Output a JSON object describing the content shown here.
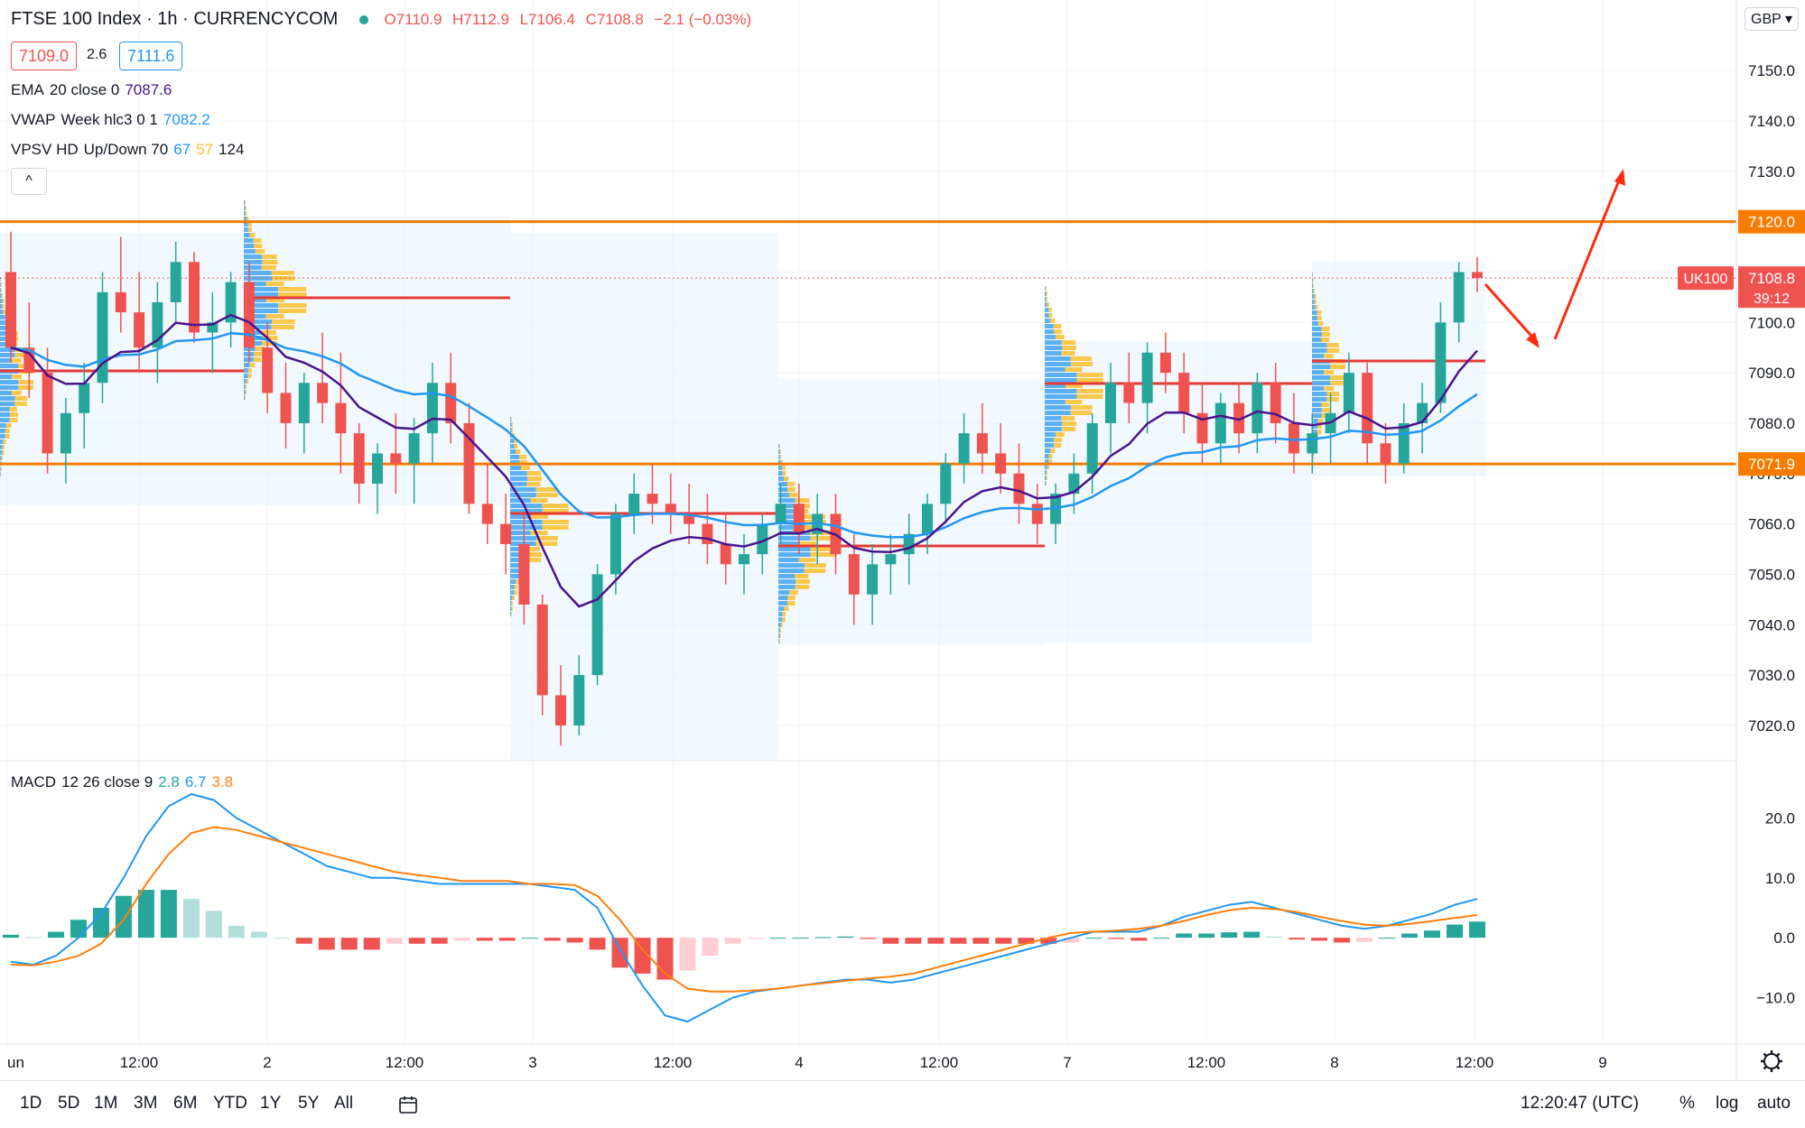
{
  "header": {
    "symbol_title": "FTSE 100 Index · 1h · CURRENCYCOM",
    "ohlc": {
      "open": "O7110.9",
      "high": "H7112.9",
      "low": "L7106.4",
      "close": "C7108.8",
      "change": "−2.1 (−0.03%)"
    },
    "bid": "7109.0",
    "spread": "2.6",
    "ask": "7111.6",
    "currency": "GBP",
    "collapse_symbol": "^"
  },
  "indicators": {
    "ema": {
      "name": "EMA",
      "params": "20 close 0",
      "value": "7087.6",
      "color": "#4a148c"
    },
    "vwap": {
      "name": "VWAP",
      "params": "Week hlc3 0 1",
      "value": "7082.2",
      "color": "#2196f3"
    },
    "vpsv": {
      "name": "VPSV HD",
      "params": "Up/Down 70",
      "v1": "67",
      "v2": "57",
      "v3": "124"
    },
    "macd": {
      "name": "MACD",
      "params": "12 26 close 9",
      "v1": "2.8",
      "v2": "6.7",
      "v3": "3.8"
    }
  },
  "price_axis": {
    "ticks": [
      "7150.0",
      "7140.0",
      "7130.0",
      "7120.0",
      "7110.0",
      "7100.0",
      "7090.0",
      "7080.0",
      "7070.0",
      "7060.0",
      "7050.0",
      "7040.0",
      "7030.0",
      "7020.0"
    ],
    "tag_resistance": "7120.0",
    "tag_support": "7071.9",
    "tag_symbol": "UK100",
    "tag_price": "7108.8",
    "tag_countdown": "39:12"
  },
  "macd_axis": {
    "ticks": [
      "20.0",
      "10.0",
      "0.0",
      "−10.0"
    ]
  },
  "time_axis": {
    "labels": [
      "un",
      "12:00",
      "2",
      "12:00",
      "3",
      "12:00",
      "4",
      "12:00",
      "7",
      "12:00",
      "8",
      "12:00",
      "9"
    ]
  },
  "bottom_bar": {
    "timeframes": [
      "1D",
      "5D",
      "1M",
      "3M",
      "6M",
      "YTD",
      "1Y",
      "5Y",
      "All"
    ],
    "clock": "12:20:47 (UTC)",
    "percent": "%",
    "log": "log",
    "auto": "auto"
  },
  "colors": {
    "up": "#26a69a",
    "down": "#ef5350",
    "resistance": "#f57c00",
    "poc": "#e53935",
    "arrow": "#ff2a10",
    "macd_line": "#2196f3",
    "signal_line": "#ff7f0e"
  },
  "chart_data": {
    "type": "candlestick",
    "interval": "1h",
    "y_range": [
      7013,
      7164
    ],
    "key_levels": {
      "resistance": 7120.0,
      "support": 7071.9,
      "last_price": 7108.8
    },
    "candles": [
      [
        7110,
        7118,
        7092,
        7095
      ],
      [
        7095,
        7104,
        7085,
        7090
      ],
      [
        7090,
        7095,
        7070,
        7074
      ],
      [
        7074,
        7085,
        7068,
        7082
      ],
      [
        7082,
        7092,
        7075,
        7088
      ],
      [
        7088,
        7110,
        7084,
        7106
      ],
      [
        7106,
        7117,
        7098,
        7102
      ],
      [
        7102,
        7110,
        7090,
        7095
      ],
      [
        7095,
        7108,
        7088,
        7104
      ],
      [
        7104,
        7116,
        7100,
        7112
      ],
      [
        7112,
        7114,
        7096,
        7098
      ],
      [
        7098,
        7106,
        7090,
        7100
      ],
      [
        7100,
        7110,
        7095,
        7108
      ],
      [
        7108,
        7112,
        7092,
        7095
      ],
      [
        7095,
        7100,
        7082,
        7086
      ],
      [
        7086,
        7092,
        7075,
        7080
      ],
      [
        7080,
        7090,
        7074,
        7088
      ],
      [
        7088,
        7098,
        7080,
        7084
      ],
      [
        7084,
        7094,
        7070,
        7078
      ],
      [
        7078,
        7080,
        7064,
        7068
      ],
      [
        7068,
        7076,
        7062,
        7074
      ],
      [
        7074,
        7082,
        7066,
        7072
      ],
      [
        7072,
        7081,
        7064,
        7078
      ],
      [
        7078,
        7092,
        7072,
        7088
      ],
      [
        7088,
        7094,
        7076,
        7080
      ],
      [
        7080,
        7084,
        7062,
        7064
      ],
      [
        7064,
        7072,
        7056,
        7060
      ],
      [
        7060,
        7066,
        7050,
        7056
      ],
      [
        7056,
        7062,
        7040,
        7044
      ],
      [
        7044,
        7046,
        7022,
        7026
      ],
      [
        7026,
        7032,
        7016,
        7020
      ],
      [
        7020,
        7034,
        7018,
        7030
      ],
      [
        7030,
        7052,
        7028,
        7050
      ],
      [
        7050,
        7064,
        7046,
        7062
      ],
      [
        7062,
        7070,
        7058,
        7066
      ],
      [
        7066,
        7072,
        7060,
        7064
      ],
      [
        7064,
        7070,
        7058,
        7062
      ],
      [
        7062,
        7068,
        7056,
        7060
      ],
      [
        7060,
        7066,
        7052,
        7056
      ],
      [
        7056,
        7062,
        7048,
        7052
      ],
      [
        7052,
        7058,
        7046,
        7054
      ],
      [
        7054,
        7062,
        7050,
        7060
      ],
      [
        7060,
        7068,
        7056,
        7064
      ],
      [
        7064,
        7068,
        7054,
        7058
      ],
      [
        7058,
        7066,
        7052,
        7062
      ],
      [
        7062,
        7066,
        7050,
        7054
      ],
      [
        7054,
        7058,
        7040,
        7046
      ],
      [
        7046,
        7056,
        7040,
        7052
      ],
      [
        7052,
        7058,
        7046,
        7054
      ],
      [
        7054,
        7062,
        7048,
        7058
      ],
      [
        7058,
        7066,
        7054,
        7064
      ],
      [
        7064,
        7074,
        7060,
        7072
      ],
      [
        7072,
        7082,
        7068,
        7078
      ],
      [
        7078,
        7084,
        7070,
        7074
      ],
      [
        7074,
        7080,
        7066,
        7070
      ],
      [
        7070,
        7076,
        7060,
        7064
      ],
      [
        7064,
        7068,
        7056,
        7060
      ],
      [
        7060,
        7068,
        7056,
        7066
      ],
      [
        7066,
        7074,
        7062,
        7070
      ],
      [
        7070,
        7082,
        7066,
        7080
      ],
      [
        7080,
        7092,
        7074,
        7088
      ],
      [
        7088,
        7094,
        7080,
        7084
      ],
      [
        7084,
        7096,
        7078,
        7094
      ],
      [
        7094,
        7098,
        7086,
        7090
      ],
      [
        7090,
        7094,
        7078,
        7082
      ],
      [
        7082,
        7088,
        7072,
        7076
      ],
      [
        7076,
        7086,
        7072,
        7084
      ],
      [
        7084,
        7088,
        7074,
        7078
      ],
      [
        7078,
        7090,
        7074,
        7088
      ],
      [
        7088,
        7092,
        7076,
        7080
      ],
      [
        7080,
        7086,
        7070,
        7074
      ],
      [
        7074,
        7082,
        7070,
        7078
      ],
      [
        7078,
        7086,
        7072,
        7082
      ],
      [
        7082,
        7094,
        7078,
        7090
      ],
      [
        7090,
        7092,
        7072,
        7076
      ],
      [
        7076,
        7080,
        7068,
        7072
      ],
      [
        7072,
        7084,
        7070,
        7080
      ],
      [
        7080,
        7088,
        7074,
        7084
      ],
      [
        7084,
        7104,
        7082,
        7100
      ],
      [
        7100,
        7112,
        7096,
        7110
      ],
      [
        7110,
        7113,
        7106,
        7108.8
      ]
    ],
    "macd": {
      "macd_line": [
        -4,
        -4.5,
        -3,
        0,
        4,
        10,
        17,
        22,
        24,
        23,
        20,
        18,
        16,
        14,
        12,
        11,
        10,
        10,
        9.5,
        9,
        9,
        9,
        9,
        9,
        8.5,
        8,
        5,
        -2,
        -8,
        -13,
        -14,
        -12,
        -10,
        -9,
        -8.5,
        -8,
        -7.5,
        -7,
        -7,
        -7.5,
        -7,
        -6,
        -5,
        -4,
        -3,
        -2,
        -1,
        0,
        1,
        1,
        1,
        2,
        3.5,
        4.5,
        5.5,
        6,
        5,
        4,
        3,
        2,
        1.5,
        2,
        3,
        4,
        5.5,
        6.5
      ],
      "signal_line": [
        -4.5,
        -4.6,
        -4,
        -3,
        -1,
        3,
        9,
        14,
        17.5,
        18.5,
        18,
        17,
        16,
        15,
        14,
        13,
        12,
        11,
        10.5,
        10,
        9.5,
        9.5,
        9.5,
        9,
        9,
        8.8,
        7,
        3,
        -2,
        -6,
        -8.5,
        -9,
        -9,
        -8.8,
        -8.5,
        -8,
        -7.6,
        -7.2,
        -6.8,
        -6.5,
        -6,
        -5,
        -4,
        -3,
        -2,
        -1,
        0,
        0.8,
        1,
        1.2,
        1.5,
        2,
        2.8,
        3.8,
        4.6,
        5,
        4.8,
        4.3,
        3.5,
        2.8,
        2.2,
        2,
        2.3,
        2.8,
        3.3,
        3.8
      ],
      "y_range": [
        -14,
        24
      ]
    }
  }
}
